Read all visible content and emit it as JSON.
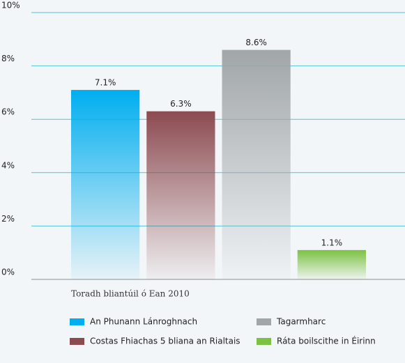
{
  "chart_data": {
    "type": "bar",
    "categories": [
      "Toradh bliantúil ó Ean 2010"
    ],
    "series": [
      {
        "name": "An Phunann Lánroghnach",
        "color": "#00aeef",
        "values": [
          7.1
        ],
        "value_labels": [
          "7.1%"
        ]
      },
      {
        "name": "Costas Fhiachas 5 bliana an Rialtais",
        "color": "#8c4b50",
        "values": [
          6.3
        ],
        "value_labels": [
          "6.3%"
        ]
      },
      {
        "name": "Tagarmharc",
        "color": "#a1a6a8",
        "values": [
          8.6
        ],
        "value_labels": [
          "8.6%"
        ]
      },
      {
        "name": "Ráta boilscithe in Éirinn",
        "color": "#7cc242",
        "values": [
          1.1
        ],
        "value_labels": [
          "1.1%"
        ]
      }
    ],
    "ylim": [
      0,
      10
    ],
    "yticks": [
      {
        "value": 0,
        "label": "0%"
      },
      {
        "value": 2,
        "label": "2%"
      },
      {
        "value": 4,
        "label": "4%"
      },
      {
        "value": 6,
        "label": "6%"
      },
      {
        "value": 8,
        "label": "8%"
      },
      {
        "value": 10,
        "label": "10%"
      }
    ],
    "grid": true,
    "legend": "bottom"
  }
}
